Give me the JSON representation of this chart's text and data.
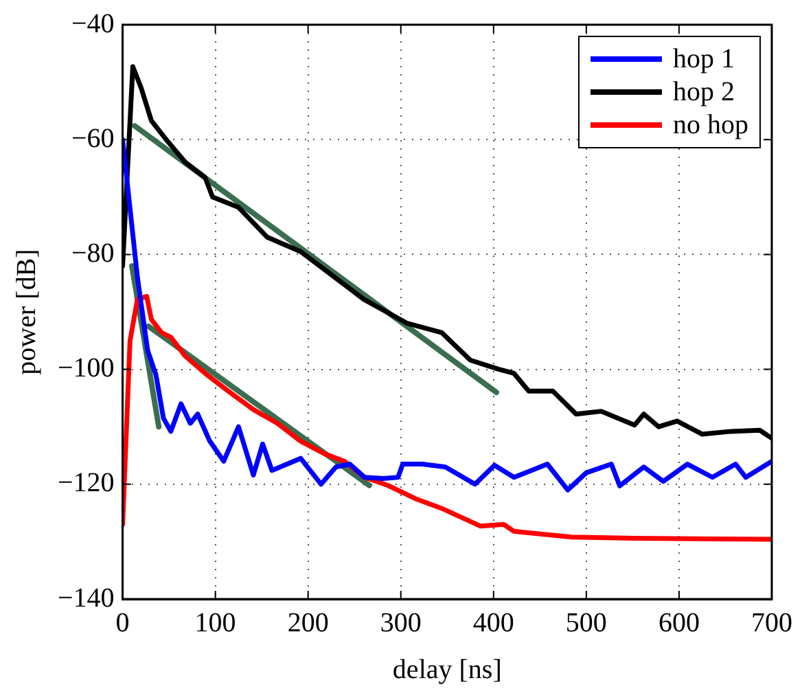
{
  "chart_data": {
    "type": "line",
    "xlabel": "delay [ns]",
    "ylabel": "power [dB]",
    "xlim": [
      0,
      700
    ],
    "ylim": [
      -140,
      -40
    ],
    "xticks": [
      0,
      100,
      200,
      300,
      400,
      500,
      600,
      700
    ],
    "yticks": [
      -140,
      -120,
      -100,
      -80,
      -60,
      -40
    ],
    "grid": true,
    "legend": "top right",
    "marker": "none",
    "line_style": "solid",
    "series": [
      {
        "name": "hop 1",
        "color": "#0000ff",
        "x": [
          0,
          16,
          27,
          36,
          44,
          52,
          63,
          73,
          81,
          94,
          109,
          125,
          141,
          151,
          161,
          192,
          214,
          230,
          245,
          261,
          281,
          297,
          302,
          323,
          348,
          380,
          401,
          422,
          458,
          480,
          500,
          527,
          536,
          562,
          583,
          609,
          636,
          661,
          672,
          700
        ],
        "values": [
          -60,
          -84,
          -96.7,
          -101,
          -108.5,
          -110.8,
          -106,
          -109.4,
          -107.8,
          -112.5,
          -116,
          -110,
          -118.4,
          -113,
          -117.6,
          -115.5,
          -120,
          -117,
          -116.5,
          -118.8,
          -119,
          -118.8,
          -116.5,
          -116.5,
          -117,
          -120,
          -116.7,
          -118.8,
          -116.5,
          -121,
          -118,
          -116.5,
          -120.3,
          -117,
          -119.5,
          -116.5,
          -118.8,
          -116.5,
          -118.8,
          -116
        ]
      },
      {
        "name": "hop 2",
        "color": "#000000",
        "x": [
          0,
          11,
          20,
          31,
          47,
          68,
          89,
          97,
          125,
          156,
          192,
          229,
          260,
          307,
          344,
          375,
          406,
          422,
          438,
          464,
          489,
          516,
          552,
          562,
          578,
          598,
          625,
          656,
          687,
          700
        ],
        "values": [
          -82,
          -47.3,
          -51,
          -56.7,
          -60,
          -64,
          -66.6,
          -70,
          -71.8,
          -77,
          -79.5,
          -84,
          -87.8,
          -92,
          -93.6,
          -98.4,
          -100,
          -100.7,
          -103.8,
          -103.8,
          -107.8,
          -107.3,
          -109.7,
          -107.8,
          -110,
          -109,
          -111.3,
          -110.8,
          -110.6,
          -112
        ]
      },
      {
        "name": "no hop",
        "color": "#ff0000",
        "x": [
          0,
          8,
          16,
          26,
          31,
          42,
          52,
          67,
          89,
          114,
          141,
          167,
          192,
          219,
          239,
          261,
          286,
          317,
          344,
          386,
          411,
          422,
          484,
          552,
          700
        ],
        "values": [
          -127,
          -95,
          -87.8,
          -87.3,
          -91.3,
          -93.6,
          -94.4,
          -97.6,
          -100.7,
          -103.8,
          -107,
          -109.4,
          -112.5,
          -114.8,
          -116,
          -118.8,
          -120.2,
          -122.6,
          -124.2,
          -127.3,
          -127,
          -128.2,
          -129.2,
          -129.4,
          -129.6
        ]
      },
      {
        "color": "#3b6e50",
        "x": [
          13,
          403
        ],
        "values": [
          -57.6,
          -104
        ]
      },
      {
        "color": "#3b6e50",
        "x": [
          10,
          39
        ],
        "values": [
          -82,
          -110
        ]
      },
      {
        "color": "#3b6e50",
        "x": [
          28,
          266
        ],
        "values": [
          -92.5,
          -120.2
        ]
      }
    ]
  }
}
